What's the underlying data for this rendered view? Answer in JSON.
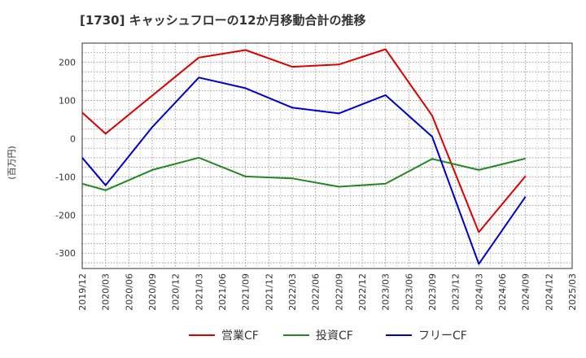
{
  "chart_data": {
    "type": "line",
    "title": "[1730]  キャッシュフローの12か月移動合計の推移",
    "ylabel": "(百万円)",
    "xlabel": "",
    "categories": [
      "2019/12",
      "2020/03",
      "2020/06",
      "2020/09",
      "2020/12",
      "2021/03",
      "2021/06",
      "2021/09",
      "2021/12",
      "2022/03",
      "2022/06",
      "2022/09",
      "2022/12",
      "2023/03",
      "2023/06",
      "2023/09",
      "2023/12",
      "2024/03",
      "2024/06",
      "2024/09",
      "2024/12",
      "2025/03"
    ],
    "ylim": [
      -340,
      250
    ],
    "yticks": [
      200,
      100,
      0,
      -100,
      -200,
      -300
    ],
    "grid": true,
    "legend_position": "bottom",
    "series": [
      {
        "name": "営業CF",
        "color": "#dd0000",
        "values": [
          68,
          13,
          null,
          null,
          null,
          212,
          null,
          232,
          null,
          188,
          null,
          194,
          null,
          234,
          null,
          60,
          null,
          -245,
          null,
          -98,
          null,
          null
        ]
      },
      {
        "name": "投資CF",
        "color": "#228822",
        "values": [
          -118,
          -135,
          null,
          -82,
          null,
          -50,
          null,
          -99,
          null,
          -104,
          null,
          -126,
          null,
          -118,
          null,
          -53,
          null,
          -82,
          null,
          -52,
          null,
          null
        ]
      },
      {
        "name": "フリーCF",
        "color": "#0000cc",
        "values": [
          -50,
          -122,
          null,
          30,
          null,
          160,
          null,
          132,
          null,
          81,
          null,
          66,
          null,
          114,
          null,
          5,
          null,
          -328,
          null,
          -152,
          null,
          null
        ]
      }
    ]
  }
}
